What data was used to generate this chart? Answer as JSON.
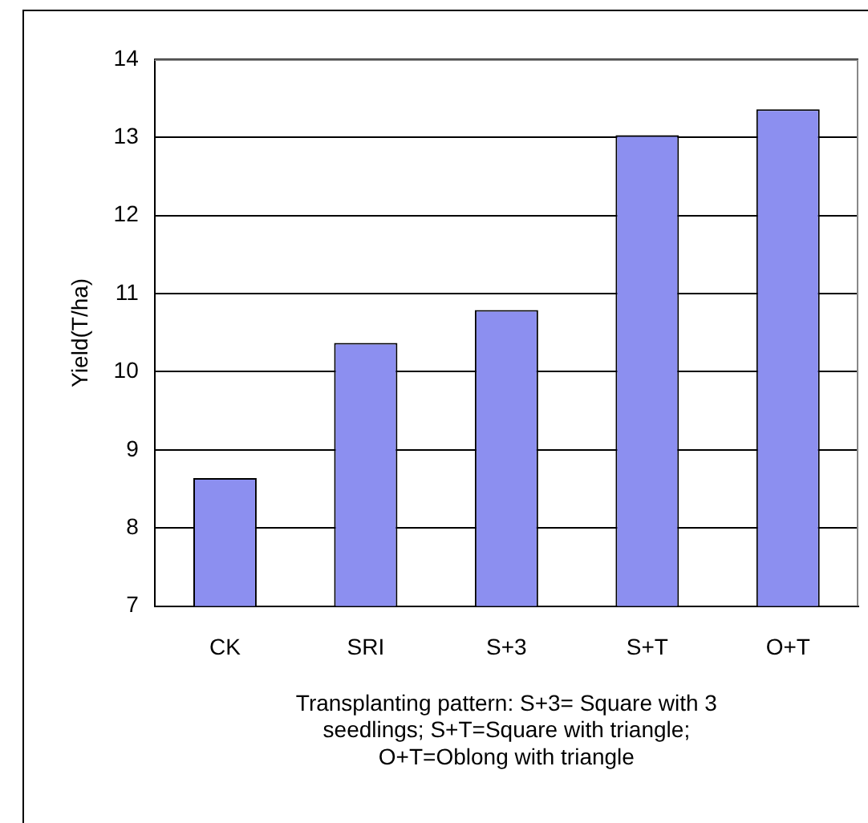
{
  "chart_data": {
    "type": "bar",
    "xlabel": "Transplanting pattern: S+3= Square with 3 seedlings; S+T=Square with triangle; O+T=Oblong with triangle",
    "ylabel": "Yield(T/ha)",
    "categories": [
      "CK",
      "SRI",
      "S+3",
      "S+T",
      "O+T"
    ],
    "values": [
      8.64,
      10.37,
      10.79,
      13.03,
      13.36
    ],
    "color": "#8c8ff0",
    "ylim": [
      7,
      14
    ],
    "yticks": [
      7,
      8,
      9,
      10,
      11,
      12,
      13,
      14
    ],
    "grid": "y",
    "legend": false
  }
}
